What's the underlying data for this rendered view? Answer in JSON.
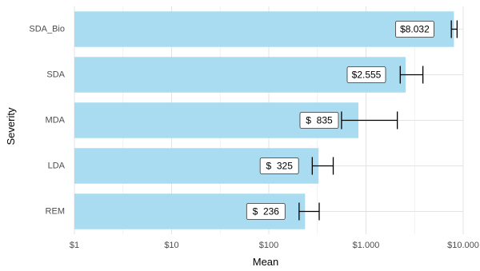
{
  "chart_data": {
    "type": "bar",
    "orientation": "horizontal",
    "title": "",
    "xlabel": "Mean",
    "ylabel": "Severity",
    "x_scale": "log10",
    "xlim": [
      1,
      10000
    ],
    "x_ticks": [
      1,
      10,
      100,
      1000,
      10000
    ],
    "x_tick_labels": [
      "$1",
      "$10",
      "$100",
      "$1.000",
      "$10.000"
    ],
    "grid": true,
    "legend": "none",
    "categories": [
      "SDA_Bio",
      "SDA",
      "MDA",
      "LDA",
      "REM"
    ],
    "values": [
      8032,
      2555,
      835,
      325,
      236
    ],
    "error_low": [
      7550,
      2250,
      560,
      280,
      205
    ],
    "error_high": [
      8650,
      3850,
      2100,
      460,
      330
    ],
    "data_labels": [
      "$8.032",
      "$2.555",
      "$  835",
      "$  325",
      "$  236"
    ],
    "colors": {
      "bar": "#a9dcf0",
      "error_bar": "#000000",
      "grid_major": "#e3e3e3",
      "grid_minor": "#f1f1f1",
      "label_box_fill": "#ffffff",
      "label_box_stroke": "#333333"
    }
  }
}
